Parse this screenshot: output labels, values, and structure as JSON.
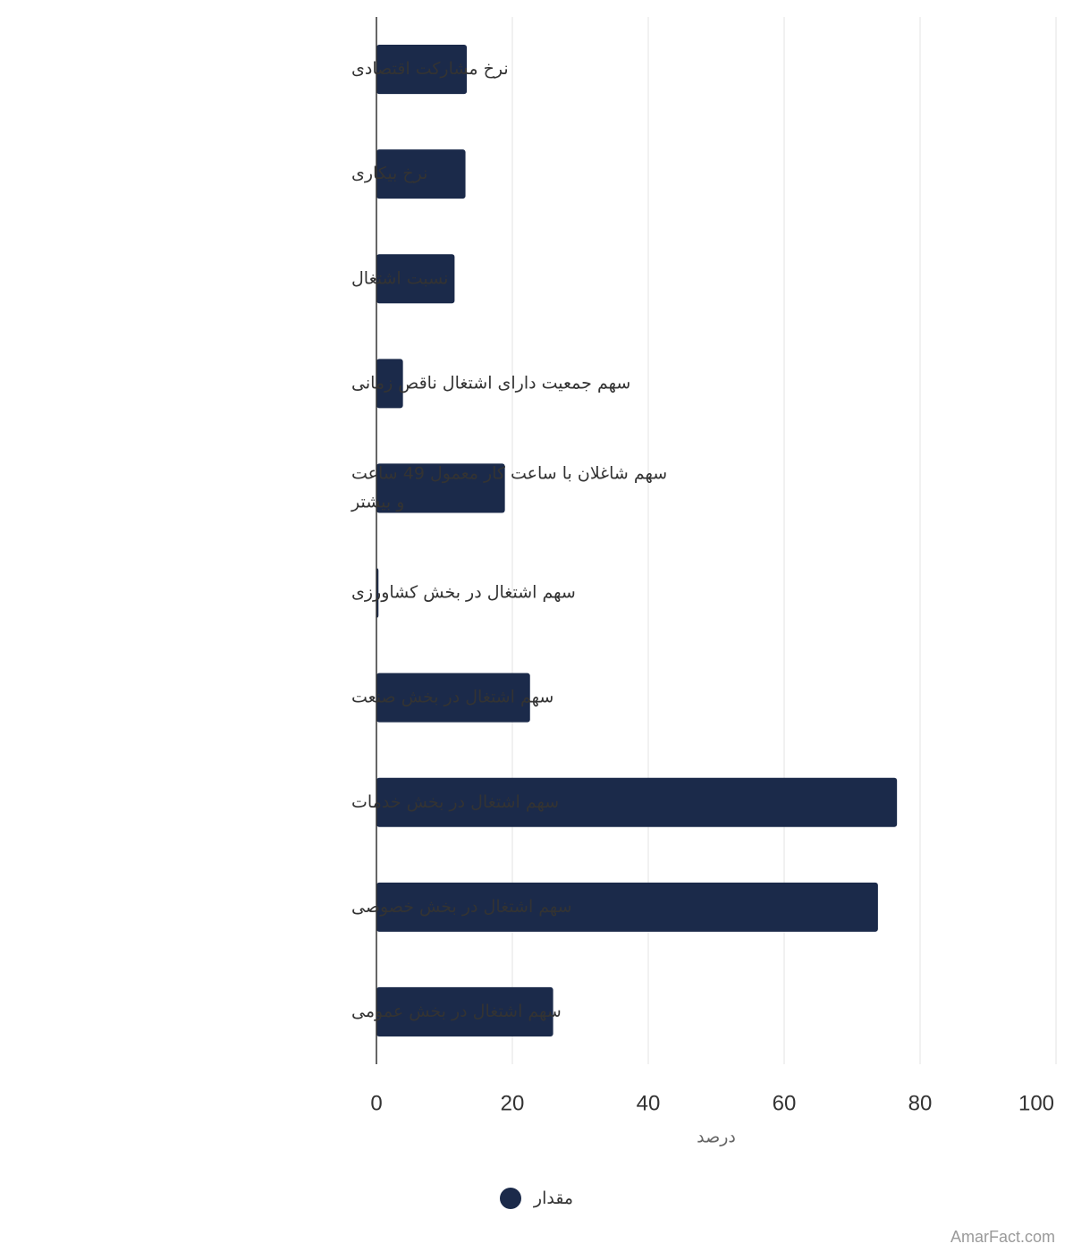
{
  "chart_data": {
    "type": "bar",
    "orientation": "horizontal",
    "categories": [
      "نرخ مشارکت اقتصادی",
      "نرخ بیکاری",
      "نسبت اشتغال",
      "سهم جمعیت دارای اشتغال ناقص زمانی",
      "سهم شاغلان با ساعت کار معمول 49 ساعت و بیشتر",
      "سهم اشتغال در بخش کشاورزی",
      "سهم اشتغال در بخش صنعت",
      "سهم اشتغال در بخش خدمات",
      "سهم اشتغال در بخش خصوصی",
      "سهم اشتغال در بخش عمومی"
    ],
    "category_lines": [
      [
        "نرخ مشارکت اقتصادی"
      ],
      [
        "نرخ بیکاری"
      ],
      [
        "نسبت اشتغال"
      ],
      [
        "سهم جمعیت دارای اشتغال ناقص زمانی"
      ],
      [
        "سهم شاغلان با ساعت کار معمول 49 ساعت",
        "و بیشتر"
      ],
      [
        "سهم اشتغال در بخش کشاورزی"
      ],
      [
        "سهم اشتغال در بخش صنعت"
      ],
      [
        "سهم اشتغال در بخش خدمات"
      ],
      [
        "سهم اشتغال در بخش خصوصی"
      ],
      [
        "سهم اشتغال در بخش عمومی"
      ]
    ],
    "series": [
      {
        "name": "مقدار",
        "color": "#1b2a4a",
        "values": [
          13.3,
          13.1,
          11.5,
          3.9,
          18.9,
          0.3,
          22.6,
          76.6,
          73.8,
          26.0
        ]
      }
    ],
    "xlabel": "درصد",
    "xlim": [
      0,
      100
    ],
    "xticks": [
      0,
      20,
      40,
      60,
      80,
      100
    ],
    "grid": true,
    "legend_position": "bottom-center"
  },
  "credit": "AmarFact.com"
}
